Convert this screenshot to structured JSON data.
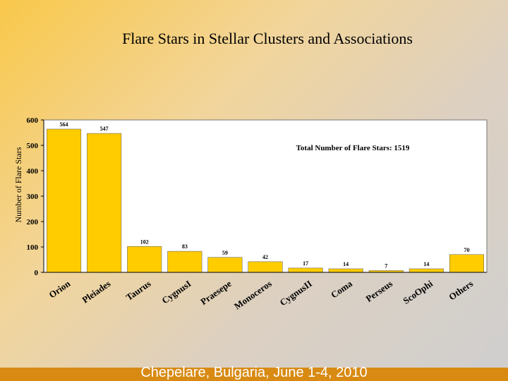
{
  "slide": {
    "title": "Flare Stars in Stellar Clusters and Associations",
    "footer": "Chepelare, Bulgaria, June 1-4, 2010",
    "accent": "#d88a12"
  },
  "chart_data": {
    "type": "bar",
    "title": "",
    "xlabel": "",
    "ylabel": "Number of Flare Stars",
    "annotation": "Total Number of Flare Stars: 1519",
    "categories": [
      "Orion",
      "Pleiades",
      "Taurus",
      "CygnusI",
      "Praesepe",
      "Monoceros",
      "CygnusII",
      "Coma",
      "Perseus",
      "ScoOphi",
      "Others"
    ],
    "values": [
      564,
      547,
      102,
      83,
      59,
      42,
      17,
      14,
      7,
      14,
      70
    ],
    "ylim": [
      0,
      600
    ],
    "yticks": [
      0,
      100,
      200,
      300,
      400,
      500,
      600
    ],
    "bar_color": "#ffcc00",
    "grid": false,
    "legend": "none"
  }
}
